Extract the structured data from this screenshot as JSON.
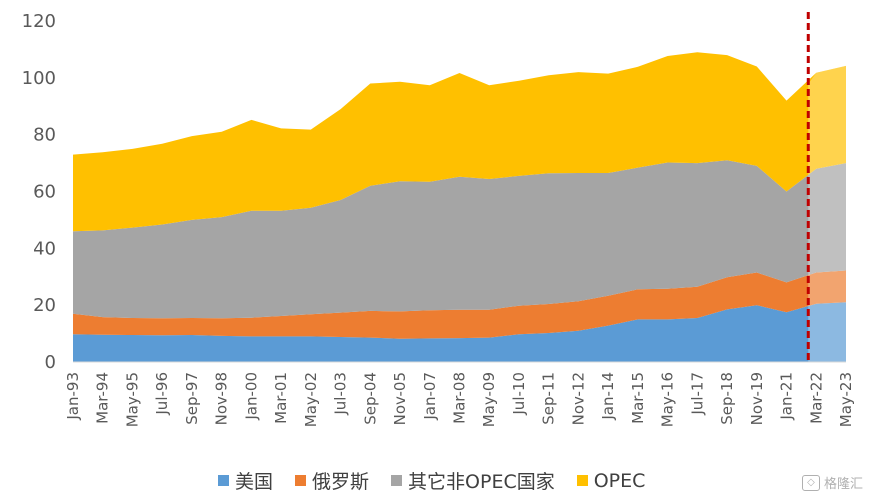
{
  "chart_data": {
    "type": "area",
    "stacked": true,
    "x": [
      "Jan-93",
      "Mar-94",
      "May-95",
      "Jul-96",
      "Sep-97",
      "Nov-98",
      "Jan-00",
      "Mar-01",
      "May-02",
      "Jul-03",
      "Sep-04",
      "Nov-05",
      "Jan-07",
      "Mar-08",
      "May-09",
      "Jul-10",
      "Sep-11",
      "Nov-12",
      "Jan-14",
      "Mar-15",
      "May-16",
      "Jul-17",
      "Sep-18",
      "Nov-19",
      "Jan-21",
      "Mar-22",
      "May-23"
    ],
    "series": [
      {
        "name": "美国",
        "color": "#5b9bd5",
        "values": [
          9.8,
          9.6,
          9.5,
          9.4,
          9.5,
          9.2,
          9.0,
          9.0,
          9.0,
          8.8,
          8.6,
          8.2,
          8.3,
          8.4,
          8.6,
          9.8,
          10.2,
          11.0,
          12.8,
          15.0,
          15.0,
          15.5,
          18.5,
          20.0,
          17.5,
          20.5,
          21.0
        ]
      },
      {
        "name": "俄罗斯",
        "color": "#ed7d31",
        "values": [
          7.2,
          6.2,
          6.0,
          6.0,
          6.0,
          6.2,
          6.6,
          7.2,
          7.8,
          8.6,
          9.4,
          9.6,
          9.9,
          10.0,
          9.8,
          10.0,
          10.2,
          10.4,
          10.5,
          10.6,
          10.8,
          11.0,
          11.3,
          11.5,
          10.5,
          11.0,
          11.2
        ]
      },
      {
        "name": "其它非OPEC国家",
        "color": "#a5a5a5",
        "values": [
          29.0,
          30.5,
          31.8,
          33.0,
          34.5,
          35.6,
          37.6,
          37.0,
          37.5,
          39.6,
          44.0,
          45.8,
          45.2,
          46.8,
          46.0,
          45.7,
          46.0,
          45.1,
          43.2,
          42.8,
          44.4,
          43.5,
          41.2,
          37.5,
          32.0,
          36.5,
          37.8
        ]
      },
      {
        "name": "OPEC",
        "color": "#ffc000",
        "values": [
          27.0,
          27.5,
          27.7,
          28.4,
          29.5,
          30.0,
          32.0,
          29.0,
          27.5,
          32.0,
          36.0,
          35.0,
          34.0,
          36.5,
          33.0,
          33.5,
          34.5,
          35.5,
          35.0,
          35.5,
          37.5,
          39.0,
          37.0,
          35.0,
          32.0,
          33.8,
          34.2
        ]
      }
    ],
    "ylim": [
      0,
      120
    ],
    "yticks": [
      "0",
      "20",
      "40",
      "60",
      "80",
      "100",
      "120"
    ],
    "forecast_from": "Mar-22",
    "forecast_marker_color": "#c00000",
    "grid": false,
    "legend_position": "bottom"
  },
  "watermark": "格隆汇"
}
